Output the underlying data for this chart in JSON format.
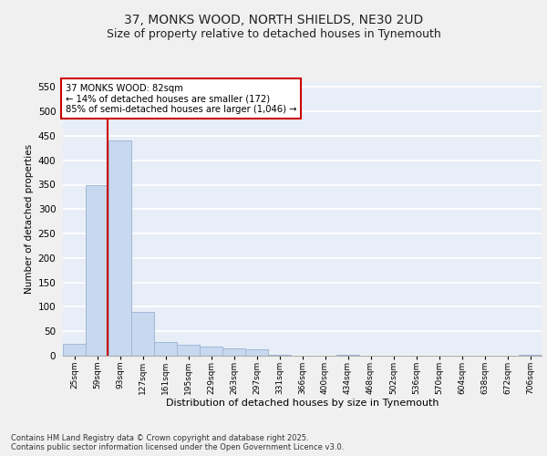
{
  "title_line1": "37, MONKS WOOD, NORTH SHIELDS, NE30 2UD",
  "title_line2": "Size of property relative to detached houses in Tynemouth",
  "xlabel": "Distribution of detached houses by size in Tynemouth",
  "ylabel": "Number of detached properties",
  "categories": [
    "25sqm",
    "59sqm",
    "93sqm",
    "127sqm",
    "161sqm",
    "195sqm",
    "229sqm",
    "263sqm",
    "297sqm",
    "331sqm",
    "366sqm",
    "400sqm",
    "434sqm",
    "468sqm",
    "502sqm",
    "536sqm",
    "570sqm",
    "604sqm",
    "638sqm",
    "672sqm",
    "706sqm"
  ],
  "values": [
    25,
    350,
    440,
    90,
    28,
    22,
    18,
    15,
    13,
    1,
    0,
    0,
    1,
    0,
    0,
    0,
    0,
    0,
    0,
    0,
    1
  ],
  "bar_color": "#c8d8ee",
  "bar_edge_color": "#a0b8d8",
  "annotation_text": "37 MONKS WOOD: 82sqm\n← 14% of detached houses are smaller (172)\n85% of semi-detached houses are larger (1,046) →",
  "annotation_box_color": "#ffffff",
  "annotation_box_edge": "#cc0000",
  "ylim": [
    0,
    560
  ],
  "yticks": [
    0,
    50,
    100,
    150,
    200,
    250,
    300,
    350,
    400,
    450,
    500,
    550
  ],
  "bg_color": "#e8eef7",
  "grid_color": "#ffffff",
  "footer_text": "Contains HM Land Registry data © Crown copyright and database right 2025.\nContains public sector information licensed under the Open Government Licence v3.0.",
  "red_line_color": "#cc0000",
  "fig_bg_color": "#f0f0f0",
  "title_fontsize": 10,
  "subtitle_fontsize": 9,
  "red_line_x": 1.45
}
